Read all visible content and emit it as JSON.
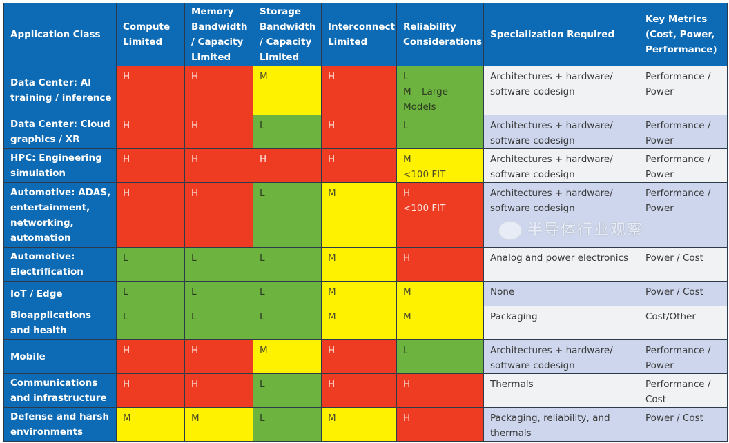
{
  "colors": {
    "header": "#0d6ab4",
    "H": "#ee3c23",
    "M": "#fff200",
    "L": "#6cb33f",
    "row_odd": "#f1f2f4",
    "row_even": "#cdd6ec"
  },
  "headers": [
    "Application Class",
    "Compute Limited",
    "Memory Bandwidth / Capacity Limited",
    "Storage Bandwidth / Capacity Limited",
    "Interconnect Limited",
    "Reliability Considerations",
    "Specialization Required",
    "Key Metrics (Cost, Power, Performance)"
  ],
  "rows": [
    {
      "app": "Data Center: AI training / inference",
      "compute": "H",
      "memory": "H",
      "storage": "M",
      "interconnect": "H",
      "reliability_level": "L",
      "reliability": "L\nM – Large Models",
      "specialization": "Architectures + hardware/ software codesign",
      "metrics": "Performance / Power"
    },
    {
      "app": "Data Center: Cloud graphics / XR",
      "compute": "H",
      "memory": "H",
      "storage": "L",
      "interconnect": "H",
      "reliability_level": "L",
      "reliability": "L",
      "specialization": "Architectures + hardware/ software codesign",
      "metrics": "Performance / Power"
    },
    {
      "app": "HPC: Engineering simulation",
      "compute": "H",
      "memory": "H",
      "storage": "H",
      "interconnect": "H",
      "reliability_level": "M",
      "reliability": "M\n<100 FIT",
      "specialization": "Architectures + hardware/ software codesign",
      "metrics": "Performance / Power"
    },
    {
      "app": "Automotive: ADAS, entertainment, networking, automation",
      "compute": "H",
      "memory": "H",
      "storage": "L",
      "interconnect": "M",
      "reliability_level": "H",
      "reliability": "H\n<100 FIT",
      "specialization": "Architectures + hardware/ software codesign",
      "metrics": "Performance / Power"
    },
    {
      "app": "Automotive: Electrification",
      "compute": "L",
      "memory": "L",
      "storage": "L",
      "interconnect": "M",
      "reliability_level": "H",
      "reliability": "H",
      "specialization": "Analog and power electronics",
      "metrics": "Power / Cost"
    },
    {
      "app": "IoT / Edge",
      "compute": "L",
      "memory": "L",
      "storage": "L",
      "interconnect": "M",
      "reliability_level": "M",
      "reliability": "M",
      "specialization": "None",
      "metrics": "Power / Cost"
    },
    {
      "app": "Bioapplications and health",
      "compute": "L",
      "memory": "L",
      "storage": "L",
      "interconnect": "M",
      "reliability_level": "M",
      "reliability": "M",
      "specialization": "Packaging",
      "metrics": "Cost/Other"
    },
    {
      "app": "Mobile",
      "compute": "H",
      "memory": "H",
      "storage": "M",
      "interconnect": "H",
      "reliability_level": "L",
      "reliability": "L",
      "specialization": "Architectures + hardware/ software codesign",
      "metrics": "Performance / Power"
    },
    {
      "app": "Communications and infrastructure",
      "compute": "H",
      "memory": "H",
      "storage": "L",
      "interconnect": "H",
      "reliability_level": "H",
      "reliability": "H",
      "specialization": "Thermals",
      "metrics": "Performance / Cost"
    },
    {
      "app": "Defense and harsh environments",
      "compute": "M",
      "memory": "M",
      "storage": "L",
      "interconnect": "M",
      "reliability_level": "H",
      "reliability": "H",
      "specialization": "Packaging, reliability, and thermals",
      "metrics": "Power / Cost"
    }
  ],
  "watermark": "半导体行业观察"
}
